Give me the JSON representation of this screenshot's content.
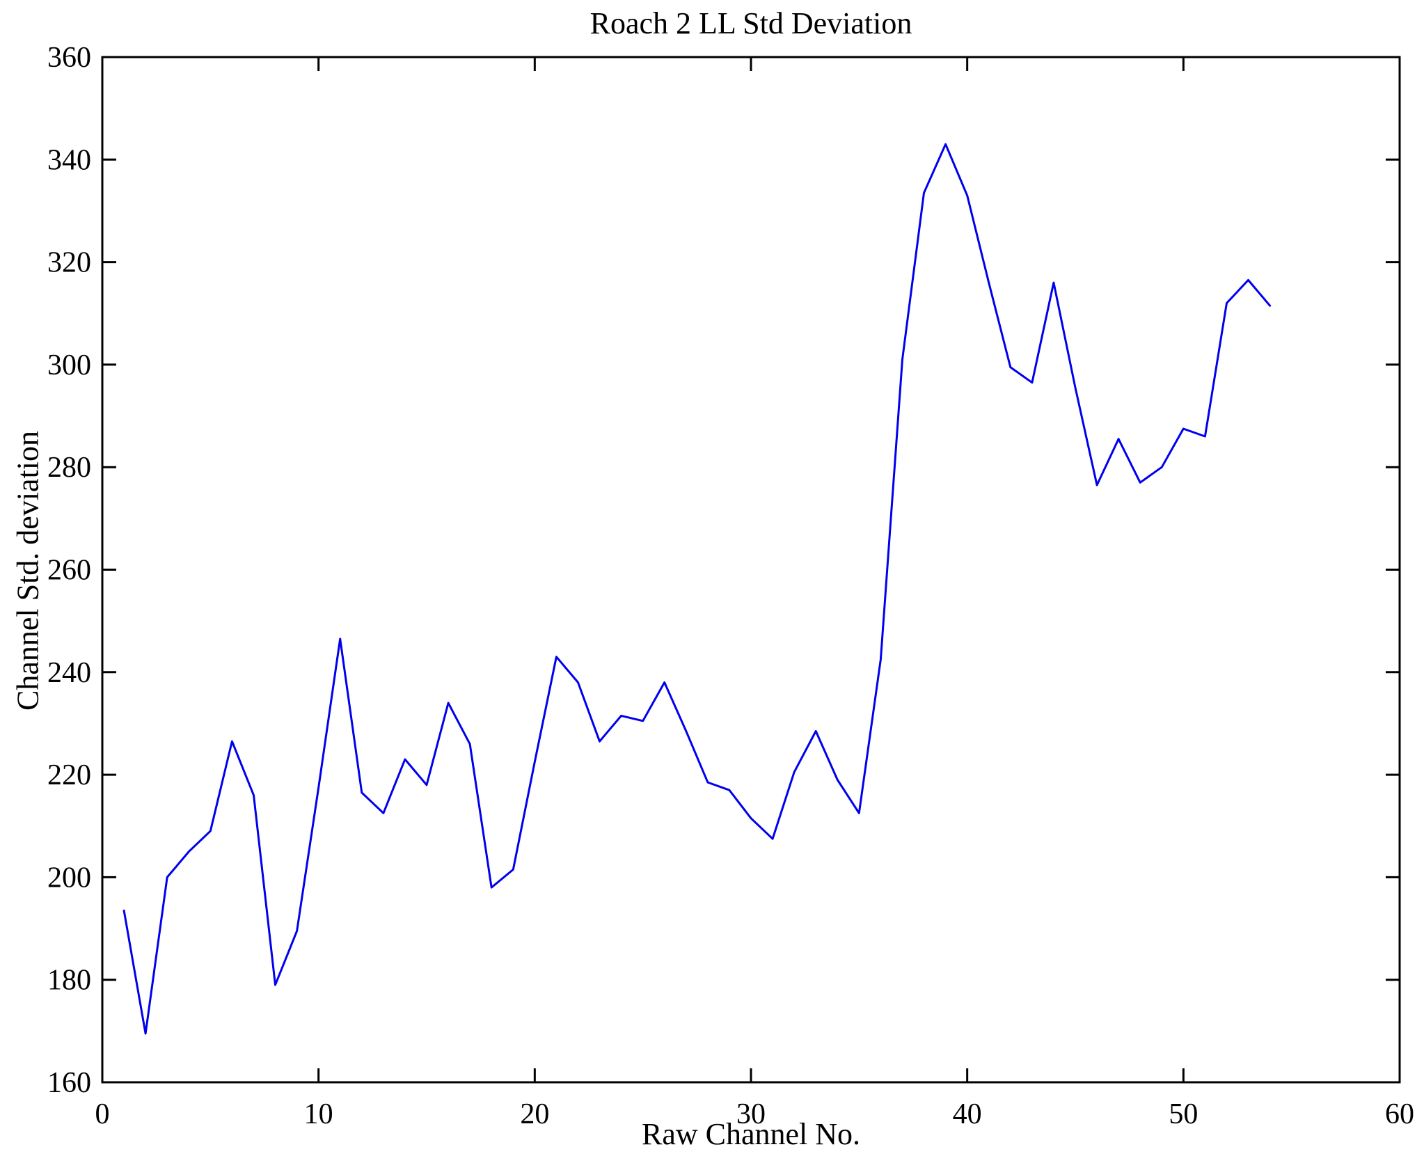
{
  "figure": {
    "background": "#ffffff",
    "axes_color": "#000000"
  },
  "chart_data": {
    "type": "line",
    "title": "Roach 2 LL Std Deviation",
    "xlabel": "Raw Channel No.",
    "ylabel": "Channel Std. deviation",
    "xlim": [
      0,
      60
    ],
    "ylim": [
      160,
      360
    ],
    "xticks": [
      0,
      10,
      20,
      30,
      40,
      50,
      60
    ],
    "yticks": [
      160,
      180,
      200,
      220,
      240,
      260,
      280,
      300,
      320,
      340,
      360
    ],
    "grid": false,
    "legend": null,
    "line_color": "#0000ee",
    "line_width": 3,
    "x": [
      1,
      2,
      3,
      4,
      5,
      6,
      7,
      8,
      9,
      10,
      11,
      12,
      13,
      14,
      15,
      16,
      17,
      18,
      19,
      20,
      21,
      22,
      23,
      24,
      25,
      26,
      27,
      28,
      29,
      30,
      31,
      32,
      33,
      34,
      35,
      36,
      37,
      38,
      39,
      40,
      41,
      42,
      43,
      44,
      45,
      46,
      47,
      48,
      49,
      50,
      51,
      52,
      53,
      54
    ],
    "values": [
      193.5,
      169.5,
      200,
      205,
      209,
      226.5,
      216,
      179,
      189.5,
      217.5,
      246.5,
      216.5,
      212.5,
      223,
      218,
      234,
      226,
      198,
      201.5,
      222.5,
      243,
      238,
      226.5,
      231.5,
      230.5,
      238,
      228.5,
      218.5,
      217,
      211.5,
      207.5,
      220.5,
      228.5,
      219,
      212.5,
      242.5,
      301,
      333.5,
      343,
      333,
      316,
      299.5,
      296.5,
      316,
      295.5,
      276.5,
      285.5,
      277,
      280,
      287.5,
      286,
      312,
      316.5,
      311.5
    ]
  }
}
